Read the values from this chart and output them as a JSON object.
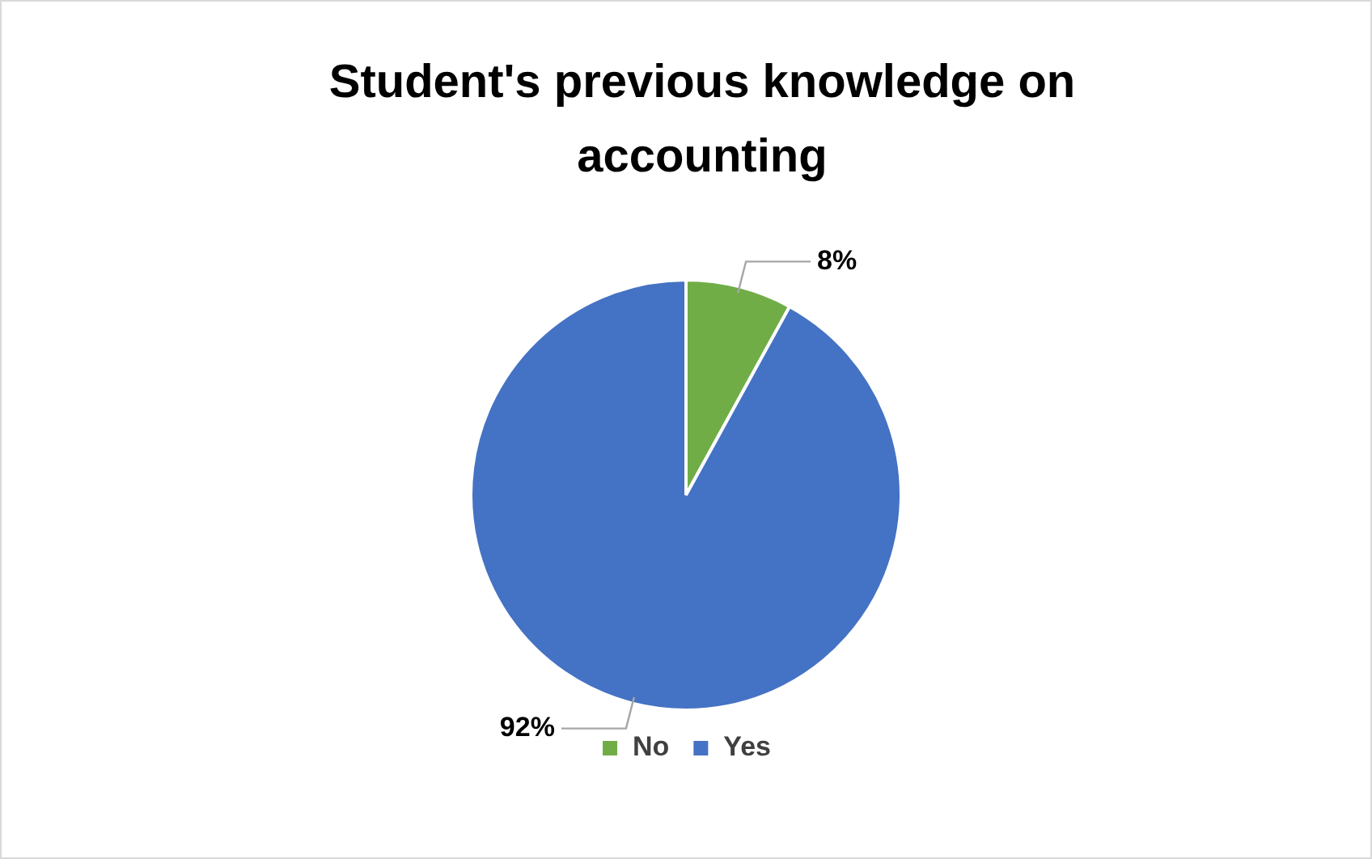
{
  "chart_data": {
    "type": "pie",
    "title": "Student's previous knowledge on accounting",
    "categories": [
      "No",
      "Yes"
    ],
    "values": [
      8,
      92
    ],
    "value_labels": [
      "8%",
      "92%"
    ],
    "colors": [
      "#70ad47",
      "#4472c4"
    ],
    "legend": "bottom"
  }
}
